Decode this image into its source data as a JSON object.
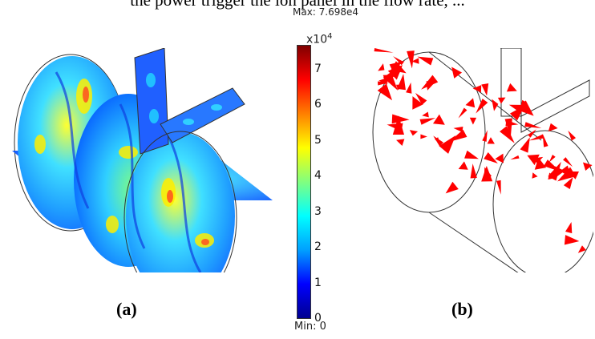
{
  "top_caption": "the power trigger the ion panel in the flow rate, ...",
  "panel_a": {
    "label": "(a)"
  },
  "panel_b": {
    "label": "(b)"
  },
  "colorbar": {
    "max_label": "Max: 7.698e4",
    "min_label": "Min: 0",
    "multiplier": "x10",
    "exponent": "4",
    "ticks": [
      "0",
      "1",
      "2",
      "3",
      "4",
      "5",
      "6",
      "7"
    ],
    "max_value": 7.698,
    "colormap": [
      "#00008f",
      "#0000ff",
      "#00a0ff",
      "#00ffff",
      "#80ff80",
      "#ffff00",
      "#ff8000",
      "#ff0000",
      "#800000"
    ]
  },
  "colors": {
    "arrow": "#ff0000",
    "outline": "#333333"
  }
}
